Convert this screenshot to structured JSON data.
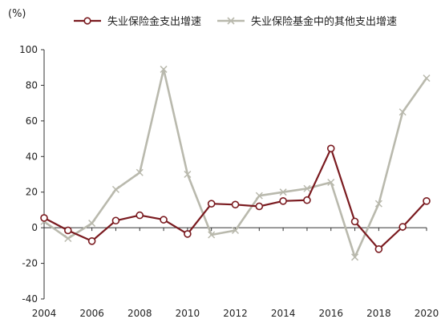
{
  "chart_data": {
    "type": "line",
    "title": "",
    "xlabel": "",
    "ylabel": "(%)",
    "x": [
      2004,
      2005,
      2006,
      2007,
      2008,
      2009,
      2010,
      2011,
      2012,
      2013,
      2014,
      2015,
      2016,
      2017,
      2018,
      2019,
      2020
    ],
    "x_ticks": [
      2004,
      2006,
      2008,
      2010,
      2012,
      2014,
      2016,
      2018,
      2020
    ],
    "y_ticks": [
      -40,
      -20,
      0,
      20,
      40,
      60,
      80,
      100
    ],
    "xlim": [
      2004,
      2020
    ],
    "ylim": [
      -40,
      100
    ],
    "grid": false,
    "legend_position": "top",
    "series": [
      {
        "name": "失业保险金支出增速",
        "color": "#7a1a1f",
        "marker": "circle",
        "values": [
          5.5,
          -1.5,
          -7.5,
          4,
          7,
          4.5,
          -3.5,
          13.5,
          13,
          12,
          15,
          15.5,
          44.5,
          3.5,
          -12,
          0.5,
          15
        ]
      },
      {
        "name": "失业保险基金中的其他支出增速",
        "color": "#b9b9ad",
        "marker": "x",
        "values": [
          3.5,
          -6,
          2.5,
          21.5,
          31,
          89,
          30,
          -4,
          -1.5,
          18,
          20,
          22,
          25.5,
          -16.5,
          13.5,
          65,
          84
        ]
      }
    ]
  }
}
